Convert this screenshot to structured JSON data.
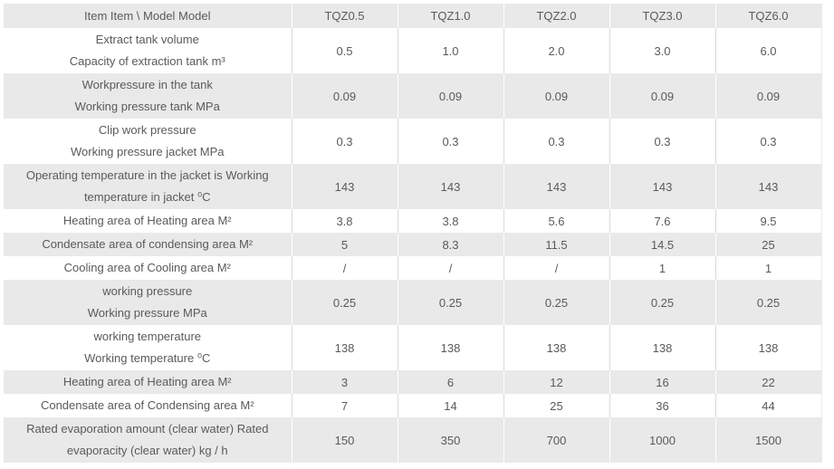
{
  "table": {
    "header": {
      "item_label": "Item Item \\ Model Model",
      "models": [
        "TQZ0.5",
        "TQZ1.0",
        "TQZ2.0",
        "TQZ3.0",
        "TQZ6.0"
      ]
    },
    "rows": [
      {
        "label_lines": [
          "Extract tank volume",
          "Capacity of extraction tank m³"
        ],
        "values": [
          "0.5",
          "1.0",
          "2.0",
          "3.0",
          "6.0"
        ]
      },
      {
        "label_lines": [
          "Workpressure in the tank",
          "Working pressure tank MPa"
        ],
        "values": [
          "0.09",
          "0.09",
          "0.09",
          "0.09",
          "0.09"
        ]
      },
      {
        "label_lines": [
          "Clip work pressure",
          "Working pressure jacket MPa"
        ],
        "values": [
          "0.3",
          "0.3",
          "0.3",
          "0.3",
          "0.3"
        ]
      },
      {
        "label_lines": [
          "Operating temperature in the jacket is Working",
          "temperature in jacket ⁰C"
        ],
        "values": [
          "143",
          "143",
          "143",
          "143",
          "143"
        ]
      },
      {
        "label_lines": [
          "Heating area of Heating area M²"
        ],
        "values": [
          "3.8",
          "3.8",
          "5.6",
          "7.6",
          "9.5"
        ]
      },
      {
        "label_lines": [
          "Condensate area of condensing area M²"
        ],
        "values": [
          "5",
          "8.3",
          "11.5",
          "14.5",
          "25"
        ]
      },
      {
        "label_lines": [
          "Cooling area of Cooling area M²"
        ],
        "values": [
          "/",
          "/",
          "/",
          "1",
          "1"
        ]
      },
      {
        "label_lines": [
          "working pressure",
          "Working pressure MPa"
        ],
        "values": [
          "0.25",
          "0.25",
          "0.25",
          "0.25",
          "0.25"
        ]
      },
      {
        "label_lines": [
          "working temperature",
          "Working temperature ⁰C"
        ],
        "values": [
          "138",
          "138",
          "138",
          "138",
          "138"
        ]
      },
      {
        "label_lines": [
          "Heating area of Heating area M²"
        ],
        "values": [
          "3",
          "6",
          "12",
          "16",
          "22"
        ]
      },
      {
        "label_lines": [
          "Condensate area of Condensing area M²"
        ],
        "values": [
          "7",
          "14",
          "25",
          "36",
          "44"
        ]
      },
      {
        "label_lines": [
          "Rated evaporation amount (clear water) Rated",
          "evaporacity (clear water) kg / h"
        ],
        "values": [
          "150",
          "350",
          "700",
          "1000",
          "1500"
        ]
      }
    ]
  },
  "colors": {
    "row_shade": "#e9e9e9",
    "text": "#5a5a5a",
    "separator_on_white": "#d9d9d9",
    "separator_on_shade": "#ffffff"
  }
}
